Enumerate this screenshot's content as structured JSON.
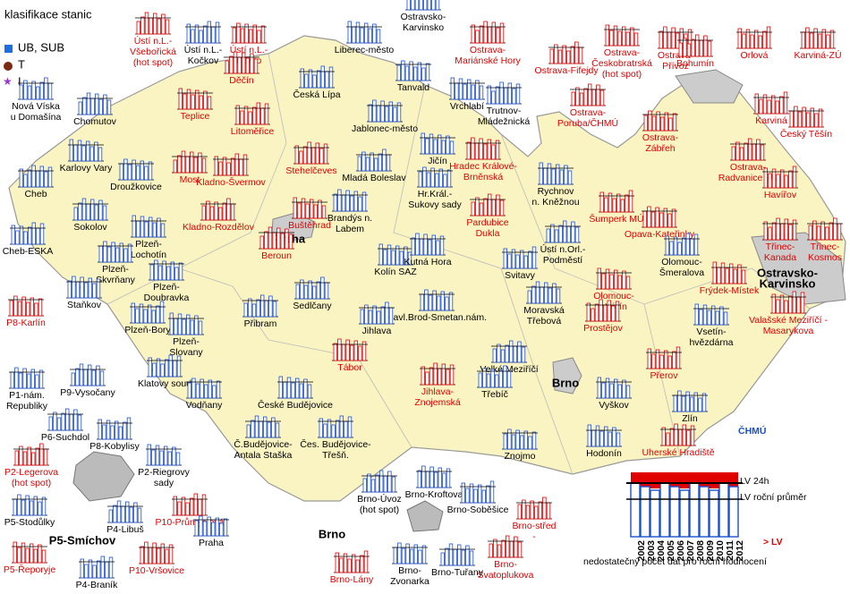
{
  "legend": {
    "title": "klasifikace stanic",
    "items": [
      "UB, SUB",
      "T",
      "I"
    ]
  },
  "key": {
    "lv24": "LV 24h",
    "lvyear": "LV roční průměr",
    "years": [
      "2002",
      "2003",
      "2004",
      "2005",
      "2006",
      "2007",
      "2008",
      "2009",
      "2010",
      "2011",
      "2012"
    ],
    "over": "> LV",
    "note": "nedostatečný počet dat pro roční hodnocení",
    "logo": "ČHMÚ"
  },
  "stations": [
    {
      "label": [
        "Ústí n.L.-",
        "Všebořická",
        "(hot spot)"
      ],
      "color": "#e00000"
    },
    {
      "label": [
        "Ústí n.L.-",
        "Kočkov"
      ],
      "color": "#000000"
    },
    {
      "label": [
        "Ústí n.L.-",
        "město"
      ],
      "color": "#e00000"
    },
    {
      "label": [
        "Liberec-město"
      ],
      "color": "#000000"
    },
    {
      "label": [
        "Ostrava-",
        "Mariánské Hory"
      ],
      "color": "#e00000"
    },
    {
      "label": [
        "Ostrava-Fifejdy"
      ],
      "color": "#e00000"
    },
    {
      "label": [
        "Ostrava-",
        "Českobratrská",
        "(hot spot)"
      ],
      "color": "#e00000"
    },
    {
      "label": [
        "Ostrava-",
        "Přívoz"
      ],
      "color": "#e00000"
    },
    {
      "label": [
        "Bohumín"
      ],
      "color": "#e00000"
    },
    {
      "label": [
        "Orlová"
      ],
      "color": "#e00000"
    },
    {
      "label": [
        "Karviná-ZÚ"
      ],
      "color": "#e00000"
    },
    {
      "label": [
        "Děčín"
      ],
      "color": "#e00000"
    },
    {
      "label": [
        "Česká Lípa"
      ],
      "color": "#000000"
    },
    {
      "label": [
        "Tanvald"
      ],
      "color": "#000000"
    },
    {
      "label": [
        "Vrchlabí"
      ],
      "color": "#000000"
    },
    {
      "label": [
        "Trutnov-",
        "Mládežnická"
      ],
      "color": "#000000"
    },
    {
      "label": [
        "Nová Víska",
        "u Domašína"
      ],
      "color": "#000000"
    },
    {
      "label": [
        "Teplice"
      ],
      "color": "#e00000"
    },
    {
      "label": [
        "Jablonec-město"
      ],
      "color": "#000000"
    },
    {
      "label": [
        "Ostrava-",
        "Poruba/ČHMÚ"
      ],
      "color": "#e00000"
    },
    {
      "label": [
        "Karviná"
      ],
      "color": "#e00000"
    },
    {
      "label": [
        "Český Těšín"
      ],
      "color": "#e00000"
    },
    {
      "label": [
        "Chomutov"
      ],
      "color": "#000000"
    },
    {
      "label": [
        "Litoměřice"
      ],
      "color": "#e00000"
    },
    {
      "label": [
        "Ostrava-",
        "Zábřeh"
      ],
      "color": "#e00000"
    },
    {
      "label": [
        "Karlovy Vary"
      ],
      "color": "#000000"
    },
    {
      "label": [
        "Stehelčeves"
      ],
      "color": "#e00000"
    },
    {
      "label": [
        "Mladá Boleslav"
      ],
      "color": "#000000"
    },
    {
      "label": [
        "Jičín"
      ],
      "color": "#000000"
    },
    {
      "label": [
        "Hradec Králové-",
        "Brněnská"
      ],
      "color": "#e00000"
    },
    {
      "label": [
        "Ostrava-",
        "Radvanice ZÚ"
      ],
      "color": "#e00000"
    },
    {
      "label": [
        "Havířov"
      ],
      "color": "#e00000"
    },
    {
      "label": [
        "Droužkovice"
      ],
      "color": "#000000"
    },
    {
      "label": [
        "Most"
      ],
      "color": "#e00000"
    },
    {
      "label": [
        "Kladno-Švermov"
      ],
      "color": "#e00000"
    },
    {
      "label": [
        "Hr.Král.-",
        "Sukovy sady"
      ],
      "color": "#000000"
    },
    {
      "label": [
        "Rychnov",
        "n. Kněžnou"
      ],
      "color": "#000000"
    },
    {
      "label": [
        "Cheb"
      ],
      "color": "#000000"
    },
    {
      "label": [
        "Kladno-Rozdělov"
      ],
      "color": "#e00000"
    },
    {
      "label": [
        "Buštěhrad"
      ],
      "color": "#e00000"
    },
    {
      "label": [
        "Brandýs n.",
        "Labem"
      ],
      "color": "#000000"
    },
    {
      "label": [
        "Pardubice",
        "Dukla"
      ],
      "color": "#e00000"
    },
    {
      "label": [
        "Šumperk MÚ"
      ],
      "color": "#e00000"
    },
    {
      "label": [
        "Opava-Kateřinky"
      ],
      "color": "#e00000"
    },
    {
      "label": [
        "Sokolov"
      ],
      "color": "#000000"
    },
    {
      "label": [
        "Cheb-ESKA"
      ],
      "color": "#000000"
    },
    {
      "label": [
        "Praha"
      ],
      "color": "#000000"
    },
    {
      "label": [
        "Plzeň-",
        "Lochotín"
      ],
      "color": "#000000"
    },
    {
      "label": [
        "Třinec-",
        "Kanada"
      ],
      "color": "#e00000"
    },
    {
      "label": [
        "Třinec-",
        "Kosmos"
      ],
      "color": "#e00000"
    },
    {
      "label": [
        "Kolín SAZ"
      ],
      "color": "#000000"
    },
    {
      "label": [
        "Kutná Hora"
      ],
      "color": "#000000"
    },
    {
      "label": [
        "Ústí n.Orl.-",
        "Podměstí"
      ],
      "color": "#000000"
    },
    {
      "label": [
        "Svitavy"
      ],
      "color": "#000000"
    },
    {
      "label": [
        "Plzeň-",
        "Skvrňany"
      ],
      "color": "#000000"
    },
    {
      "label": [
        "Beroun"
      ],
      "color": "#e00000"
    },
    {
      "label": [
        "Olomouc-",
        "Šmeralova"
      ],
      "color": "#000000"
    },
    {
      "label": [
        "Plzeň-",
        "Doubravka"
      ],
      "color": "#000000"
    },
    {
      "label": [
        "Frýdek-Místek"
      ],
      "color": "#e00000"
    },
    {
      "label": [
        "Ostravsko-",
        "Karvinsko"
      ],
      "color": "#000000"
    },
    {
      "label": [
        "Sedlčany"
      ],
      "color": "#000000"
    },
    {
      "label": [
        "Olomouc-",
        "Hejčín"
      ],
      "color": "#e00000"
    },
    {
      "label": [
        "Staňkov"
      ],
      "color": "#000000"
    },
    {
      "label": [
        "Přibram"
      ],
      "color": "#000000"
    },
    {
      "label": [
        "Plzeň-Bory"
      ],
      "color": "#000000"
    },
    {
      "label": [
        "Havl.Brod-Smetan.nám."
      ],
      "color": "#000000"
    },
    {
      "label": [
        "Moravská",
        "Třebová"
      ],
      "color": "#000000"
    },
    {
      "label": [
        "Valašské Meziříčí -",
        "Masarykova"
      ],
      "color": "#e00000"
    },
    {
      "label": [
        "P8-Karlín"
      ],
      "color": "#e00000"
    },
    {
      "label": [
        "Plzeň-",
        "Slovany"
      ],
      "color": "#000000"
    },
    {
      "label": [
        "Prostějov"
      ],
      "color": "#e00000"
    },
    {
      "label": [
        "Jihlava"
      ],
      "color": "#000000"
    },
    {
      "label": [
        "Vsetín-",
        "hvězdárna"
      ],
      "color": "#000000"
    },
    {
      "label": [
        "Tábor"
      ],
      "color": "#e00000"
    },
    {
      "label": [
        "Velké Meziříčí"
      ],
      "color": "#000000"
    },
    {
      "label": [
        "Přerov"
      ],
      "color": "#e00000"
    },
    {
      "label": [
        "P1-nám.",
        "Republiky"
      ],
      "color": "#000000"
    },
    {
      "label": [
        "P9-Vysočany"
      ],
      "color": "#000000"
    },
    {
      "label": [
        "Klatovy soud"
      ],
      "color": "#000000"
    },
    {
      "label": [
        "Vodňany"
      ],
      "color": "#000000"
    },
    {
      "label": [
        "České Budějovice"
      ],
      "color": "#000000"
    },
    {
      "label": [
        "Jihlava-",
        "Znojemská"
      ],
      "color": "#e00000"
    },
    {
      "label": [
        "Třebíč"
      ],
      "color": "#000000"
    },
    {
      "label": [
        "Vyškov"
      ],
      "color": "#000000"
    },
    {
      "label": [
        "Brno"
      ],
      "color": "#000000"
    },
    {
      "label": [
        "P6-Suchdol"
      ],
      "color": "#000000"
    },
    {
      "label": [
        "P8-Kobylisy"
      ],
      "color": "#000000"
    },
    {
      "label": [
        "Zlín"
      ],
      "color": "#000000"
    },
    {
      "label": [
        "Č.Budějovice-",
        "Antala Staška"
      ],
      "color": "#000000"
    },
    {
      "label": [
        "Čes. Budějovice-",
        "Třešň."
      ],
      "color": "#000000"
    },
    {
      "label": [
        "Znojmo"
      ],
      "color": "#000000"
    },
    {
      "label": [
        "Hodonín"
      ],
      "color": "#000000"
    },
    {
      "label": [
        "Uherské Hradiště"
      ],
      "color": "#e00000"
    },
    {
      "label": [
        "P2-Legerova",
        "(hot spot)"
      ],
      "color": "#e00000"
    },
    {
      "label": [
        "P2-Riegrovy",
        "sady"
      ],
      "color": "#000000"
    },
    {
      "label": [
        "Brno-Kroftova"
      ],
      "color": "#000000"
    },
    {
      "label": [
        "Brno-Úvoz",
        "(hot spot)"
      ],
      "color": "#000000"
    },
    {
      "label": [
        "Brno-Soběšice"
      ],
      "color": "#000000"
    },
    {
      "label": [
        "P5-Stodůlky"
      ],
      "color": "#000000"
    },
    {
      "label": [
        "P4-Libuš"
      ],
      "color": "#000000"
    },
    {
      "label": [
        "P10-Průmyslová"
      ],
      "color": "#e00000"
    },
    {
      "label": [
        "Praha"
      ],
      "color": "#000000"
    },
    {
      "label": [
        "Brno"
      ],
      "color": "#000000"
    },
    {
      "label": [
        "P5-Smíchov"
      ],
      "color": "#000000"
    },
    {
      "label": [
        "Brno-střed",
        "-"
      ],
      "color": "#e00000"
    },
    {
      "label": [
        "P5-Řeporyje"
      ],
      "color": "#e00000"
    },
    {
      "label": [
        "P10-Vršovice"
      ],
      "color": "#e00000"
    },
    {
      "label": [
        "Brno-",
        "Svatoplukova"
      ],
      "color": "#e00000"
    },
    {
      "label": [
        "Brno-Lány"
      ],
      "color": "#e00000"
    },
    {
      "label": [
        "Brno-",
        "Zvonarka"
      ],
      "color": "#000000"
    },
    {
      "label": [
        "Brno-Tuřany"
      ],
      "color": "#000000"
    },
    {
      "label": [
        "P4-Braník"
      ],
      "color": "#000000"
    },
    {
      "label": [
        "Ostravsko-",
        "Karvinsko"
      ],
      "color": "#000000"
    }
  ]
}
